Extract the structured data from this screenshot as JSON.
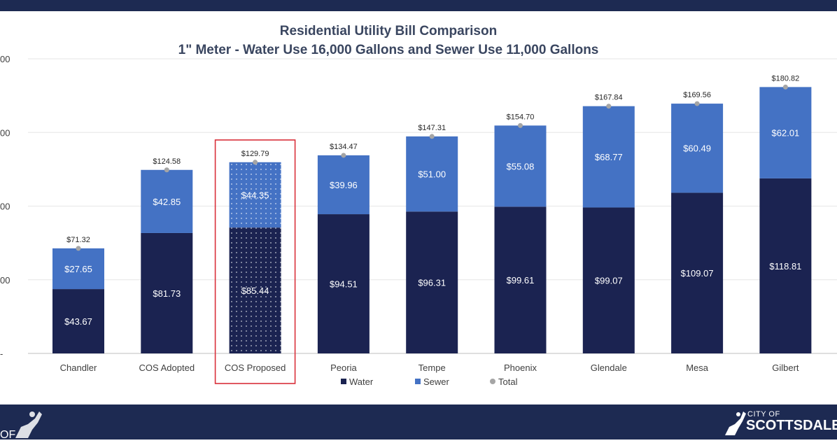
{
  "colors": {
    "water": "#1b2351",
    "sewer": "#4472c4",
    "total": "#a5a5a5",
    "highlight": "#d9303a",
    "banner": "#1d2a52"
  },
  "legend": {
    "water": "Water",
    "sewer": "Sewer",
    "total": "Total"
  },
  "axis": {
    "y_tick_fragments": [
      "00",
      "00",
      "00",
      "00",
      "-"
    ]
  },
  "branding": {
    "city_small": "CITY OF",
    "city_name": "SCOTTSDALE",
    "left_logo_fragment": "OF"
  },
  "chart_data": {
    "type": "bar",
    "stacked": true,
    "title": "Residential Utility Bill Comparison",
    "subtitle": "1\" Meter - Water Use 16,000 Gallons and Sewer Use 11,000 Gallons",
    "categories": [
      "Chandler",
      "COS Adopted",
      "COS Proposed",
      "Peoria",
      "Tempe",
      "Phoenix",
      "Glendale",
      "Mesa",
      "Gilbert"
    ],
    "highlighted_category": "COS Proposed",
    "series": [
      {
        "name": "Water",
        "values": [
          43.67,
          81.73,
          85.44,
          94.51,
          96.31,
          99.61,
          99.07,
          109.07,
          118.81
        ],
        "labels": [
          "$43.67",
          "$81.73",
          "$85.44",
          "$94.51",
          "$96.31",
          "$99.61",
          "$99.07",
          "$109.07",
          "$118.81"
        ]
      },
      {
        "name": "Sewer",
        "values": [
          27.65,
          42.85,
          44.35,
          39.96,
          51.0,
          55.08,
          68.77,
          60.49,
          62.01
        ],
        "labels": [
          "$27.65",
          "$42.85",
          "$44.35",
          "$39.96",
          "$51.00",
          "$55.08",
          "$68.77",
          "$60.49",
          "$62.01"
        ]
      }
    ],
    "totals": {
      "name": "Total",
      "values": [
        71.32,
        124.58,
        129.79,
        134.47,
        147.31,
        154.7,
        167.84,
        169.56,
        180.82
      ],
      "labels": [
        "$71.32",
        "$124.58",
        "$129.79",
        "$134.47",
        "$147.31",
        "$154.70",
        "$167.84",
        "$169.56",
        "$180.82"
      ]
    },
    "ylim": [
      0,
      200
    ],
    "grid": true,
    "legend_position": "bottom-center"
  }
}
